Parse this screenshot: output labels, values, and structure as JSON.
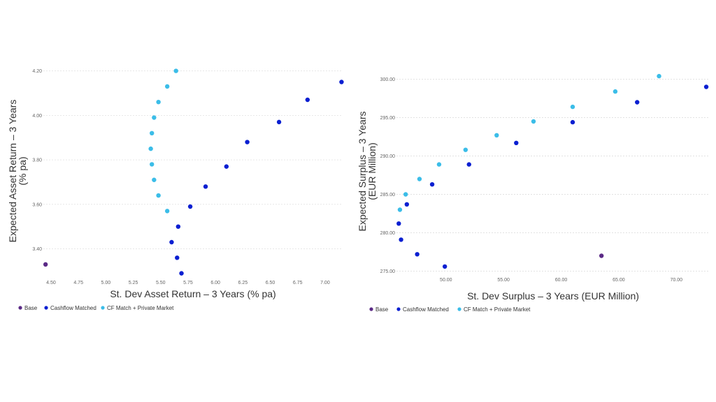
{
  "chart_data": [
    {
      "type": "scatter",
      "xlabel": "St. Dev Asset Return – 3 Years (% pa)",
      "ylabel": "Expected Asset Return – 3 Years (% pa)",
      "xlim": [
        4.43,
        7.16
      ],
      "ylim": [
        3.27,
        4.23
      ],
      "xticks": [
        "4.50",
        "4.75",
        "5.00",
        "5.25",
        "5.50",
        "5.75",
        "6.00",
        "6.25",
        "6.50",
        "6.75",
        "7.00"
      ],
      "yticks": [
        "3.40",
        "3.60",
        "3.80",
        "4.00",
        "4.20"
      ],
      "legend_position": "bottom-left",
      "series": [
        {
          "name": "Base",
          "color": "#5b2a86",
          "points": [
            [
              4.45,
              3.33
            ]
          ]
        },
        {
          "name": "Cashflow Matched",
          "color": "#0a1fd1",
          "points": [
            [
              5.69,
              3.29
            ],
            [
              5.65,
              3.36
            ],
            [
              5.6,
              3.43
            ],
            [
              5.66,
              3.5
            ],
            [
              5.77,
              3.59
            ],
            [
              5.91,
              3.68
            ],
            [
              6.1,
              3.77
            ],
            [
              6.29,
              3.88
            ],
            [
              6.58,
              3.97
            ],
            [
              6.84,
              4.07
            ],
            [
              7.15,
              4.15
            ]
          ]
        },
        {
          "name": "CF Match + Private Market",
          "color": "#3bbde8",
          "points": [
            [
              5.56,
              3.57
            ],
            [
              5.48,
              3.64
            ],
            [
              5.44,
              3.71
            ],
            [
              5.42,
              3.78
            ],
            [
              5.41,
              3.85
            ],
            [
              5.42,
              3.92
            ],
            [
              5.44,
              3.99
            ],
            [
              5.48,
              4.06
            ],
            [
              5.56,
              4.13
            ],
            [
              5.64,
              4.2
            ]
          ]
        }
      ]
    },
    {
      "type": "scatter",
      "xlabel": "St. Dev Surplus – 3 Years (EUR Million)",
      "ylabel": "Expected Surplus – 3 Years (EUR Million)",
      "xlim": [
        45.7,
        72.9
      ],
      "ylim": [
        274.5,
        301.5
      ],
      "xticks": [
        "50.00",
        "55.00",
        "60.00",
        "65.00",
        "70.00"
      ],
      "yticks": [
        "275.00",
        "280.00",
        "285.00",
        "290.00",
        "295.00",
        "300.00"
      ],
      "legend_position": "bottom-left",
      "series": [
        {
          "name": "Base",
          "color": "#5b2a86",
          "points": [
            [
              63.5,
              277.0
            ]
          ]
        },
        {
          "name": "Cashflow Matched",
          "color": "#0a1fd1",
          "points": [
            [
              49.9,
              275.6
            ],
            [
              47.5,
              277.2
            ],
            [
              46.1,
              279.1
            ],
            [
              45.9,
              281.2
            ],
            [
              46.6,
              283.7
            ],
            [
              48.8,
              286.3
            ],
            [
              52.0,
              288.9
            ],
            [
              56.1,
              291.7
            ],
            [
              61.0,
              294.4
            ],
            [
              66.6,
              297.0
            ],
            [
              72.6,
              299.0
            ]
          ]
        },
        {
          "name": "CF Match + Private Market",
          "color": "#3bbde8",
          "points": [
            [
              46.0,
              283.0
            ],
            [
              46.5,
              285.0
            ],
            [
              47.7,
              287.0
            ],
            [
              49.4,
              288.9
            ],
            [
              51.7,
              290.8
            ],
            [
              54.4,
              292.7
            ],
            [
              57.6,
              294.5
            ],
            [
              61.0,
              296.4
            ],
            [
              64.7,
              298.4
            ],
            [
              68.5,
              300.4
            ]
          ]
        }
      ]
    }
  ]
}
